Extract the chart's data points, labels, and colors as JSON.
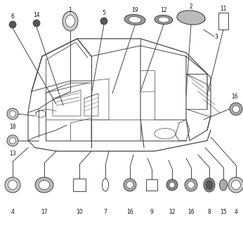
{
  "bg_color": "#ffffff",
  "line_color": "#444444",
  "text_color": "#111111",
  "fig_width": 3.46,
  "fig_height": 3.2,
  "dpi": 100,
  "font_size": 5.5
}
